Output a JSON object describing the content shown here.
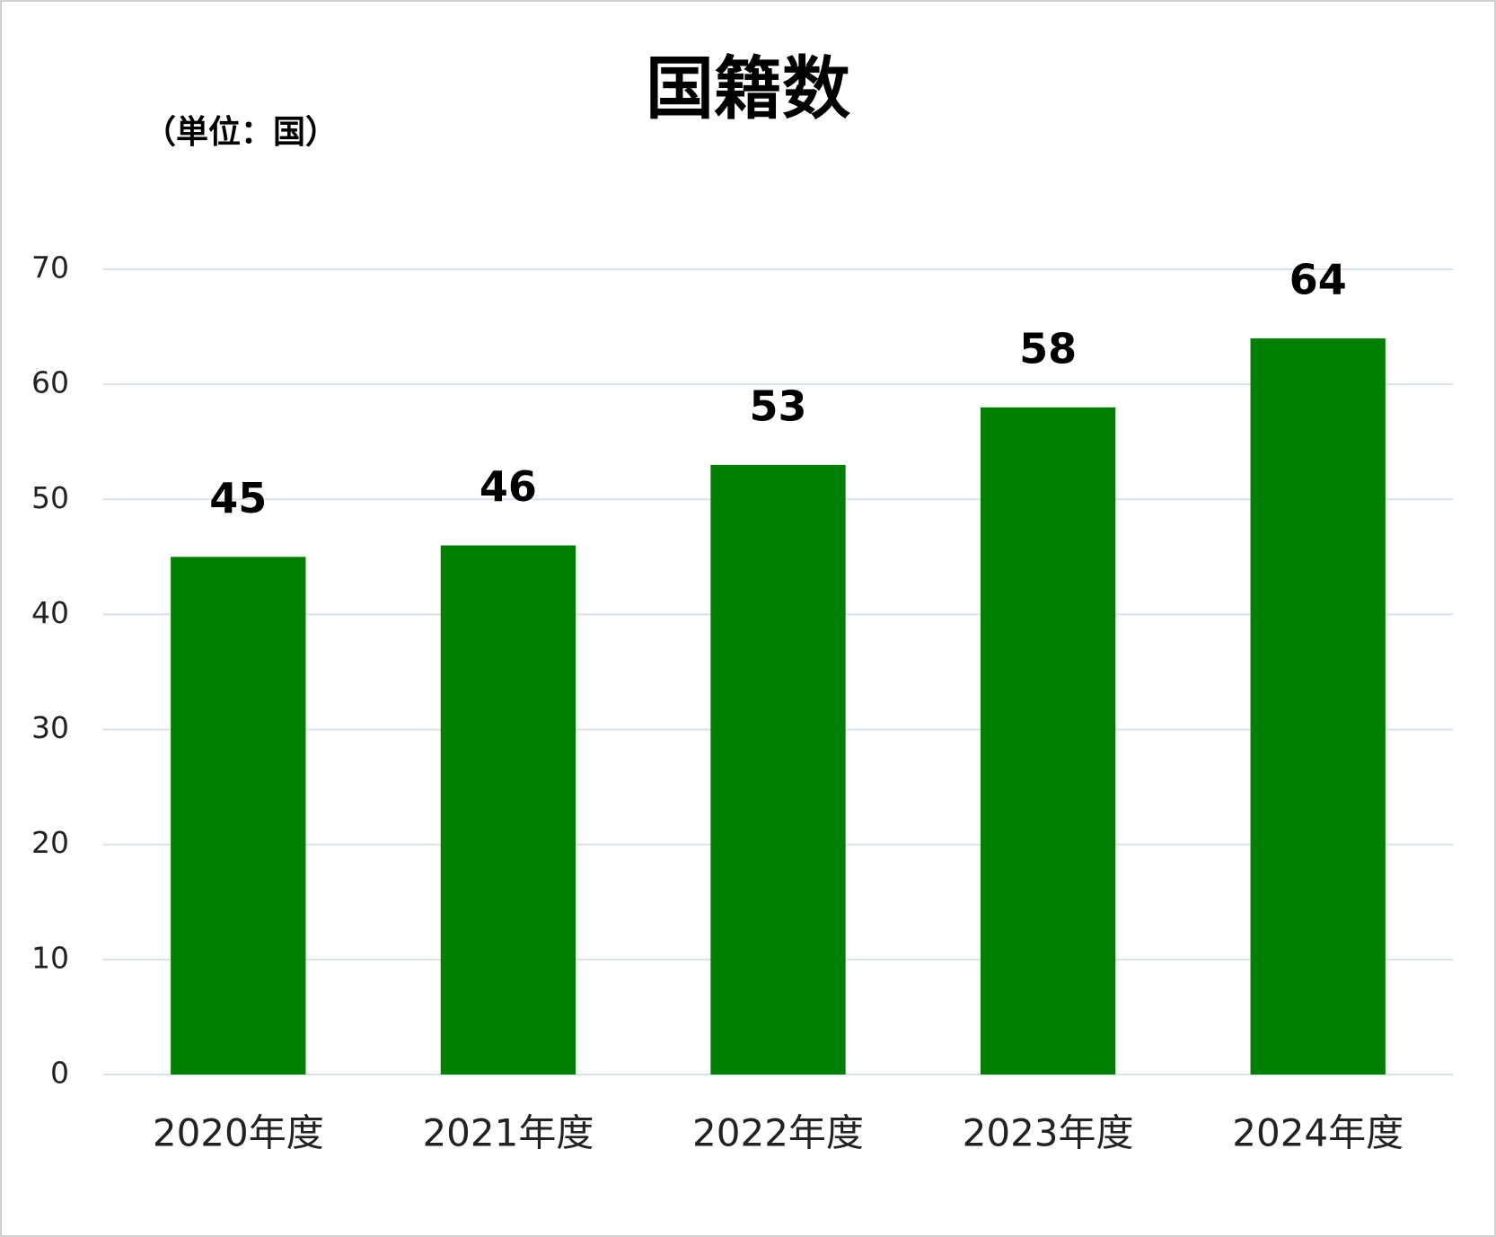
{
  "chart_data": {
    "type": "bar",
    "title": "国籍数",
    "y_axis_label": "（単位：国）",
    "categories": [
      "2020年度",
      "2021年度",
      "2022年度",
      "2023年度",
      "2024年度"
    ],
    "values": [
      45,
      46,
      53,
      58,
      64
    ],
    "color": "#007f00",
    "ylim": [
      0,
      70
    ],
    "yticks": [
      0,
      10,
      20,
      30,
      40,
      50,
      60,
      70
    ],
    "grid": true
  }
}
